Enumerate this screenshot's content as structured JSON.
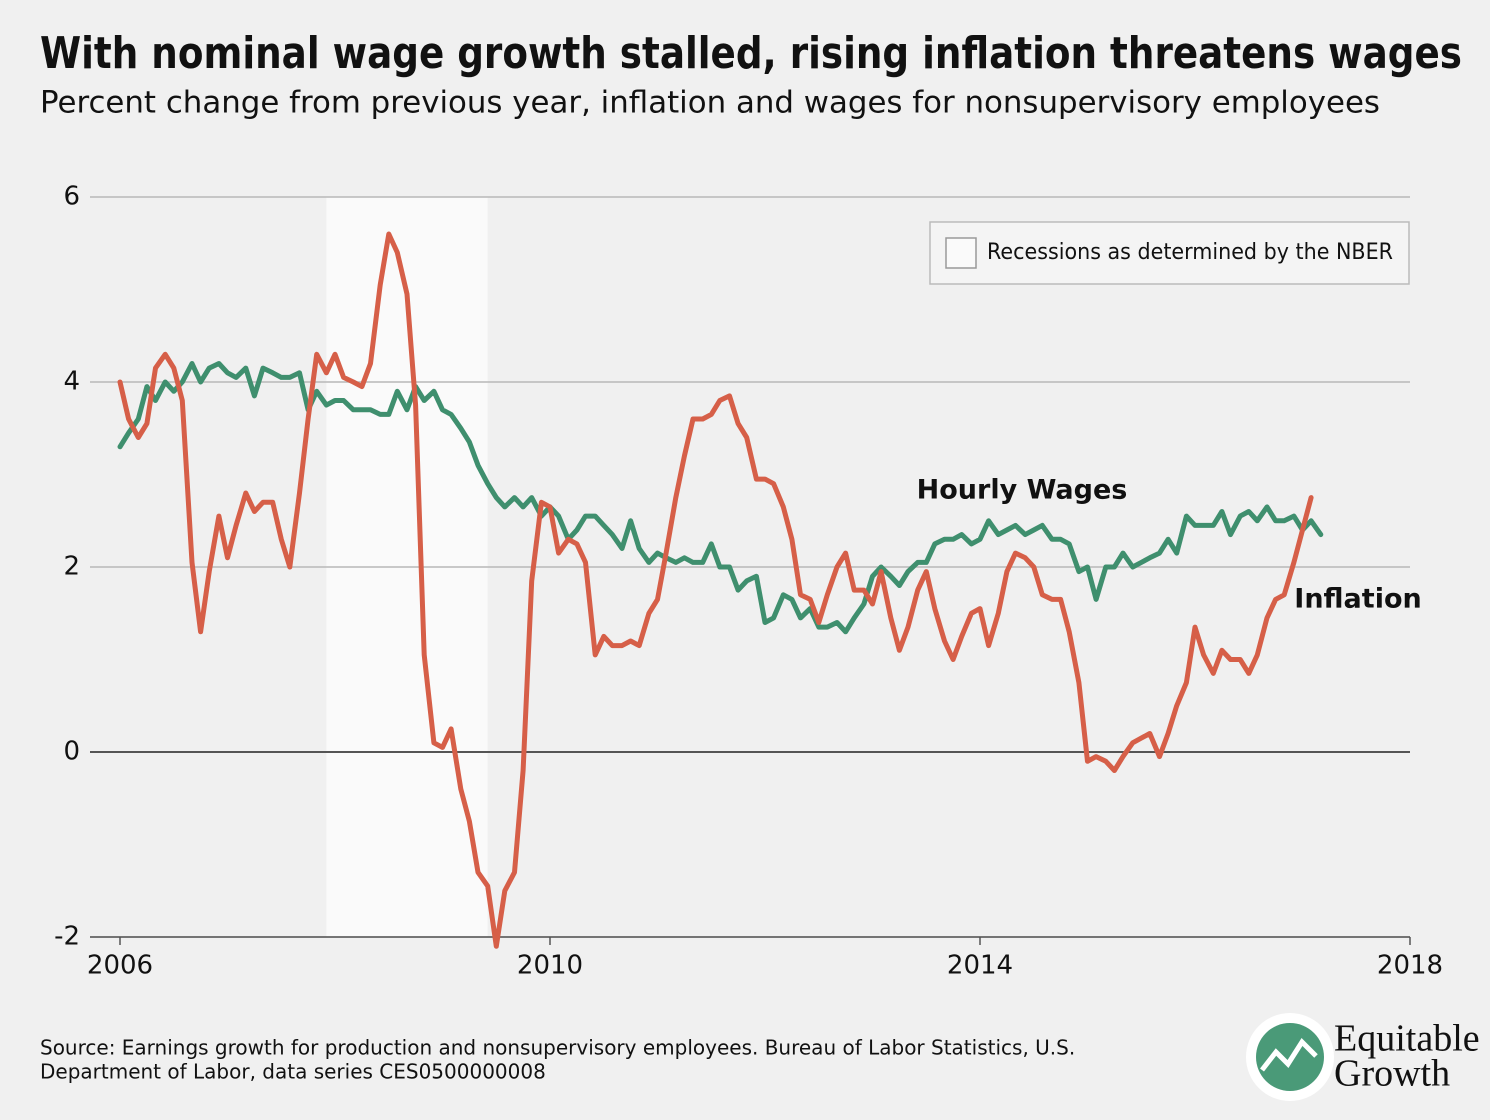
{
  "chart_data": {
    "type": "line",
    "title": "With nominal wage growth stalled, rising inflation threatens wages",
    "subtitle": "Percent change from previous year, inflation and wages for nonsupervisory employees",
    "x": [
      2006,
      2006.08,
      2006.17,
      2006.25,
      2006.33,
      2006.42,
      2006.5,
      2006.58,
      2006.67,
      2006.75,
      2006.83,
      2006.92,
      2007,
      2007.08,
      2007.17,
      2007.25,
      2007.33,
      2007.42,
      2007.5,
      2007.58,
      2007.67,
      2007.75,
      2007.83,
      2007.92,
      2008,
      2008.08,
      2008.17,
      2008.25,
      2008.33,
      2008.42,
      2008.5,
      2008.58,
      2008.67,
      2008.75,
      2008.83,
      2008.92,
      2009,
      2009.08,
      2009.17,
      2009.25,
      2009.33,
      2009.42,
      2009.5,
      2009.58,
      2009.67,
      2009.75,
      2009.83,
      2009.92,
      2010,
      2010.08,
      2010.17,
      2010.25,
      2010.33,
      2010.42,
      2010.5,
      2010.58,
      2010.67,
      2010.75,
      2010.83,
      2010.92,
      2011,
      2011.08,
      2011.17,
      2011.25,
      2011.33,
      2011.42,
      2011.5,
      2011.58,
      2011.67,
      2011.75,
      2011.83,
      2011.92,
      2012,
      2012.08,
      2012.17,
      2012.25,
      2012.33,
      2012.42,
      2012.5,
      2012.58,
      2012.67,
      2012.75,
      2012.83,
      2012.92,
      2013,
      2013.08,
      2013.17,
      2013.25,
      2013.33,
      2013.42,
      2013.5,
      2013.58,
      2013.67,
      2013.75,
      2013.83,
      2013.92,
      2014,
      2014.08,
      2014.17,
      2014.25,
      2014.33,
      2014.42,
      2014.5,
      2014.58,
      2014.67,
      2014.75,
      2014.83,
      2014.92,
      2015,
      2015.08,
      2015.17,
      2015.25,
      2015.33,
      2015.42,
      2015.5,
      2015.58,
      2015.67,
      2015.75,
      2015.83,
      2015.92,
      2016,
      2016.08,
      2016.17,
      2016.25,
      2016.33,
      2016.42,
      2016.5,
      2016.58,
      2016.67,
      2016.75,
      2016.83,
      2016.92,
      2017,
      2017.08,
      2017.17
    ],
    "series": [
      {
        "name": "Hourly Wages",
        "color": "#3f8f6e",
        "values": [
          3.3,
          3.45,
          3.6,
          3.95,
          3.8,
          4.0,
          3.9,
          4.0,
          4.2,
          4.0,
          4.15,
          4.2,
          4.1,
          4.05,
          4.15,
          3.85,
          4.15,
          4.1,
          4.05,
          4.05,
          4.1,
          3.7,
          3.9,
          3.75,
          3.8,
          3.8,
          3.7,
          3.7,
          3.7,
          3.65,
          3.65,
          3.9,
          3.7,
          3.95,
          3.8,
          3.9,
          3.7,
          3.65,
          3.5,
          3.35,
          3.1,
          2.9,
          2.75,
          2.65,
          2.75,
          2.65,
          2.75,
          2.55,
          2.65,
          2.55,
          2.3,
          2.4,
          2.55,
          2.55,
          2.45,
          2.35,
          2.2,
          2.5,
          2.2,
          2.05,
          2.15,
          2.1,
          2.05,
          2.1,
          2.05,
          2.05,
          2.25,
          2.0,
          2.0,
          1.75,
          1.85,
          1.9,
          1.4,
          1.45,
          1.7,
          1.65,
          1.45,
          1.55,
          1.35,
          1.35,
          1.4,
          1.3,
          1.45,
          1.6,
          1.9,
          2.0,
          1.9,
          1.8,
          1.95,
          2.05,
          2.05,
          2.25,
          2.3,
          2.3,
          2.35,
          2.25,
          2.3,
          2.5,
          2.35,
          2.4,
          2.45,
          2.35,
          2.4,
          2.45,
          2.3,
          2.3,
          2.25,
          1.95,
          2.0,
          1.65,
          2.0,
          2.0,
          2.15,
          2.0,
          2.05,
          2.1,
          2.15,
          2.3,
          2.15,
          2.55,
          2.45,
          2.45,
          2.45,
          2.6,
          2.35,
          2.55,
          2.6,
          2.5,
          2.65,
          2.5,
          2.5,
          2.55,
          2.4,
          2.5,
          2.35
        ]
      },
      {
        "name": "Inflation",
        "color": "#d65f48",
        "values": [
          4.0,
          3.6,
          3.4,
          3.55,
          4.15,
          4.3,
          4.15,
          3.8,
          2.05,
          1.3,
          1.95,
          2.55,
          2.1,
          2.45,
          2.8,
          2.6,
          2.7,
          2.7,
          2.3,
          2.0,
          2.8,
          3.6,
          4.3,
          4.1,
          4.3,
          4.05,
          4.0,
          3.95,
          4.2,
          5.05,
          5.6,
          5.4,
          4.95,
          3.75,
          1.05,
          0.1,
          0.05,
          0.25,
          -0.4,
          -0.75,
          -1.3,
          -1.45,
          -2.1,
          -1.5,
          -1.3,
          -0.2,
          1.85,
          2.7,
          2.65,
          2.15,
          2.3,
          2.25,
          2.05,
          1.05,
          1.25,
          1.15,
          1.15,
          1.2,
          1.15,
          1.5,
          1.65,
          2.15,
          2.75,
          3.2,
          3.6,
          3.6,
          3.65,
          3.8,
          3.85,
          3.55,
          3.4,
          2.95,
          2.95,
          2.9,
          2.65,
          2.3,
          1.7,
          1.65,
          1.4,
          1.7,
          2.0,
          2.15,
          1.75,
          1.75,
          1.6,
          1.95,
          1.45,
          1.1,
          1.35,
          1.75,
          1.95,
          1.55,
          1.2,
          1.0,
          1.25,
          1.5,
          1.55,
          1.15,
          1.5,
          1.95,
          2.15,
          2.1,
          2.0,
          1.7,
          1.65,
          1.65,
          1.3,
          0.75,
          -0.1,
          -0.05,
          -0.1,
          -0.2,
          -0.05,
          0.1,
          0.15,
          0.2,
          -0.05,
          0.2,
          0.5,
          0.75,
          1.35,
          1.05,
          0.85,
          1.1,
          1.0,
          1.0,
          0.85,
          1.05,
          1.45,
          1.65,
          1.7,
          2.05,
          2.4,
          2.75,
          null
        ]
      }
    ],
    "recession": {
      "label": "Recessions as determined by the NBER",
      "start": 2007.92,
      "end": 2009.42
    },
    "xlim": [
      2006,
      2018
    ],
    "xticks": [
      2006,
      2010,
      2014,
      2018
    ],
    "ylim": [
      -2,
      6
    ],
    "yticks": [
      -2,
      0,
      2,
      4,
      6
    ],
    "grid": true,
    "source": [
      "Source: Earnings growth for production and nonsupervisory employees. Bureau of Labor Statistics, U.S.",
      "Department of Labor, data series CES0500000008"
    ],
    "logo": [
      "Equitable",
      "Growth"
    ]
  }
}
